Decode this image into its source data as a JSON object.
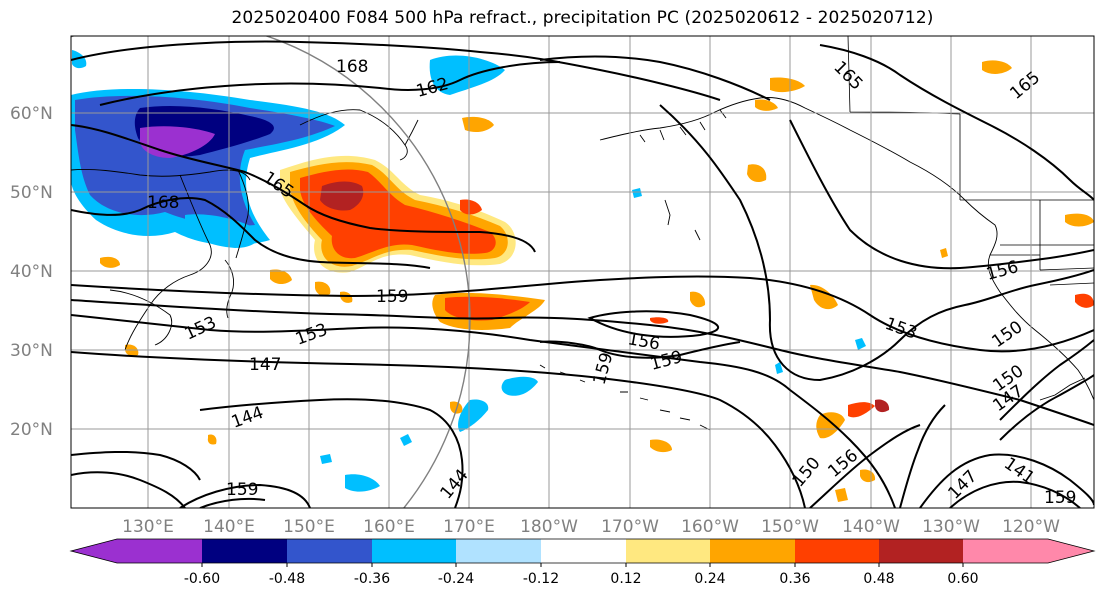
{
  "title": "2025020400 F084 500 hPa refract., precipitation PC (2025020612 - 2025020712)",
  "map": {
    "lat_labels": [
      "60°N",
      "50°N",
      "40°N",
      "30°N",
      "20°N"
    ],
    "lon_labels": [
      "130°E",
      "140°E",
      "150°E",
      "160°E",
      "170°E",
      "180°W",
      "170°W",
      "160°W",
      "150°W",
      "140°W",
      "130°W",
      "120°W"
    ],
    "contour_labels": [
      "168",
      "162",
      "165",
      "168",
      "165",
      "165",
      "159",
      "153",
      "153",
      "147",
      "144",
      "156",
      "159",
      "159",
      "156",
      "150",
      "153",
      "150",
      "147",
      "159",
      "150",
      "156",
      "144",
      "141",
      "147",
      "159"
    ],
    "colors": {
      "contour": "#000000",
      "grid": "#999999",
      "circle": "#808080"
    }
  },
  "colorbar": {
    "ticks": [
      "-0.60",
      "-0.48",
      "-0.36",
      "-0.24",
      "-0.12",
      "0.12",
      "0.24",
      "0.36",
      "0.48",
      "0.60"
    ],
    "colors": [
      "#9b30d0",
      "#000080",
      "#3355cc",
      "#00bfff",
      "#b0e2ff",
      "#ffffff",
      "#ffe880",
      "#ffa500",
      "#ff4000",
      "#b22222",
      "#ff88aa"
    ]
  }
}
